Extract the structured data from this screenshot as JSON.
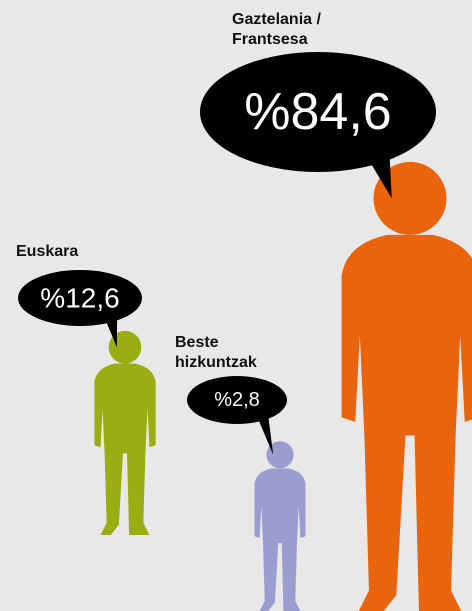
{
  "chart_data": {
    "type": "pictogram",
    "categories": [
      "Euskara",
      "Gaztelania / Frantsesa",
      "Beste hizkuntzak"
    ],
    "values": [
      12.6,
      84.6,
      2.8
    ],
    "value_labels": [
      "%12,6",
      "%84,6",
      "%2,8"
    ],
    "colors": [
      "#9aae14",
      "#ea640d",
      "#9a9dd0"
    ]
  }
}
